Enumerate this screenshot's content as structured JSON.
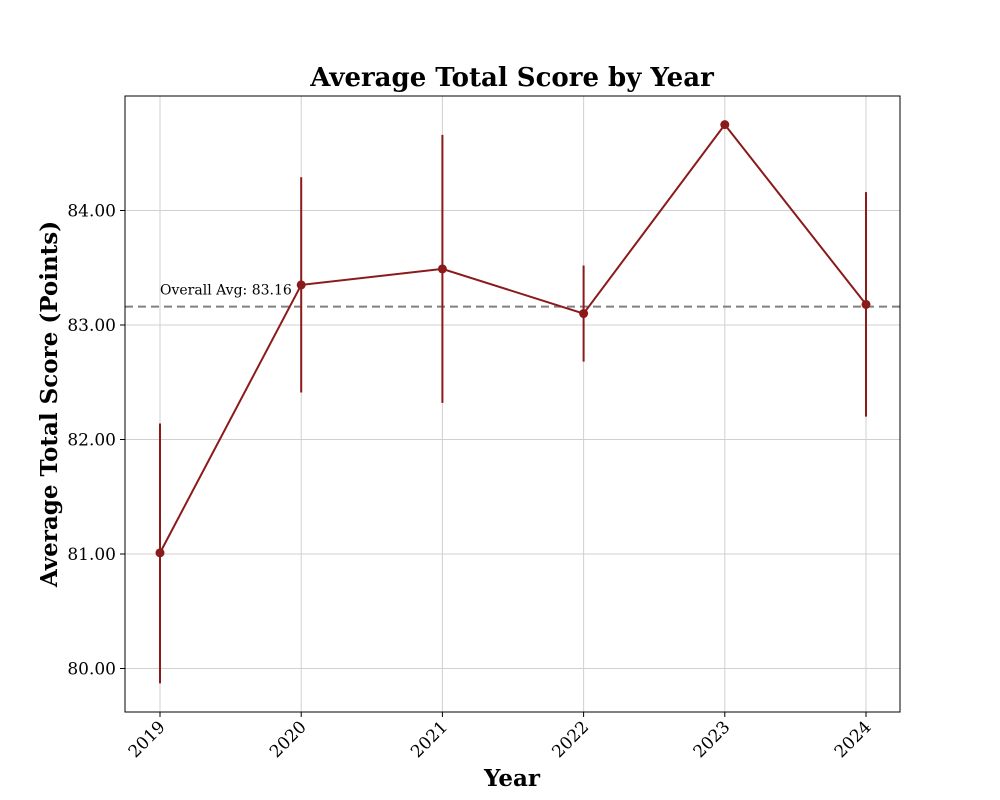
{
  "chart_data": {
    "type": "line",
    "title": "Average Total Score by Year",
    "xlabel": "Year",
    "ylabel": "Average Total Score (Points)",
    "categories": [
      "2019",
      "2020",
      "2021",
      "2022",
      "2023",
      "2024"
    ],
    "series": [
      {
        "values": [
          81.01,
          83.35,
          83.49,
          83.1,
          84.75,
          83.18
        ],
        "error_low": [
          79.87,
          82.41,
          82.32,
          82.68,
          84.75,
          82.2
        ],
        "error_high": [
          82.14,
          84.29,
          84.66,
          83.52,
          84.75,
          84.16
        ],
        "color": "#8b1a1a"
      }
    ],
    "yticks": [
      "80.00",
      "81.00",
      "82.00",
      "83.00",
      "84.00"
    ],
    "ylim": [
      79.62,
      85.0
    ],
    "grid": true,
    "reference_line": {
      "value": 83.16,
      "label": "Overall Avg: 83.16",
      "color": "#808080",
      "style": "dashed"
    }
  }
}
